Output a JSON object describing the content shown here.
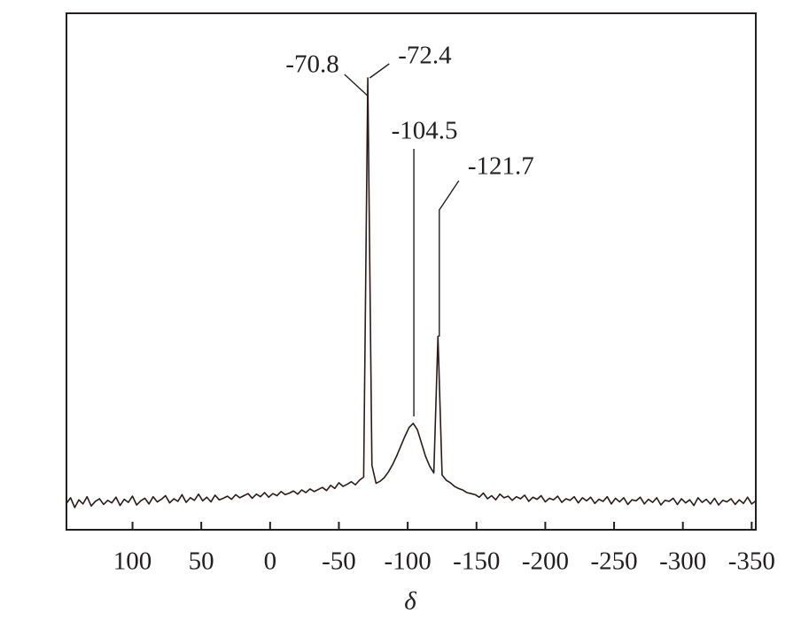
{
  "chart_data": {
    "type": "line",
    "x_label": "δ",
    "xlim": [
      148,
      -353
    ],
    "ylim": [
      0,
      100
    ],
    "xticks": [
      100,
      50,
      0,
      -50,
      -100,
      -150,
      -200,
      -250,
      -300,
      -350
    ],
    "color": "#2b1b1b",
    "x": [
      148,
      145,
      142,
      139,
      136,
      133,
      130,
      127,
      124,
      121,
      118,
      115,
      112,
      109,
      106,
      103,
      100,
      97,
      94,
      91,
      88,
      85,
      82,
      79,
      76,
      73,
      70,
      67,
      64,
      61,
      58,
      55,
      52,
      49,
      46,
      43,
      40,
      37,
      34,
      31,
      28,
      25,
      22,
      19,
      16,
      13,
      10,
      7,
      4,
      1,
      -2,
      -5,
      -8,
      -11,
      -14,
      -17,
      -20,
      -23,
      -26,
      -29,
      -32,
      -35,
      -38,
      -41,
      -44,
      -47,
      -50,
      -53,
      -56,
      -59,
      -62,
      -65,
      -68,
      -71,
      -74,
      -77,
      -80,
      -83,
      -86,
      -89,
      -92,
      -95,
      -98,
      -101,
      -104,
      -107,
      -110,
      -113,
      -116,
      -119,
      -122,
      -125,
      -128,
      -131,
      -134,
      -137,
      -140,
      -143,
      -146,
      -149,
      -152,
      -155,
      -158,
      -161,
      -164,
      -167,
      -170,
      -173,
      -176,
      -179,
      -182,
      -185,
      -188,
      -191,
      -194,
      -197,
      -200,
      -203,
      -206,
      -209,
      -212,
      -215,
      -218,
      -221,
      -224,
      -227,
      -230,
      -233,
      -236,
      -239,
      -242,
      -245,
      -248,
      -251,
      -254,
      -257,
      -260,
      -263,
      -266,
      -269,
      -272,
      -275,
      -278,
      -281,
      -284,
      -287,
      -290,
      -293,
      -296,
      -299,
      -302,
      -305,
      -308,
      -311,
      -314,
      -317,
      -320,
      -323,
      -326,
      -329,
      -332,
      -335,
      -338,
      -341,
      -344,
      -347,
      -350,
      -353
    ],
    "values": [
      5.1,
      6.2,
      4.3,
      5.8,
      5.0,
      6.4,
      4.6,
      5.5,
      6.0,
      4.9,
      5.7,
      5.2,
      6.3,
      4.7,
      5.9,
      5.3,
      6.5,
      4.8,
      5.6,
      6.1,
      5.0,
      6.4,
      5.4,
      5.9,
      6.6,
      5.2,
      6.0,
      5.5,
      6.8,
      5.3,
      6.2,
      5.7,
      6.9,
      5.6,
      6.3,
      5.4,
      6.7,
      5.8,
      6.1,
      6.5,
      5.9,
      6.8,
      6.2,
      6.6,
      7.0,
      6.1,
      6.9,
      6.4,
      7.2,
      6.3,
      7.0,
      6.6,
      7.4,
      6.8,
      7.1,
      7.5,
      6.9,
      7.7,
      7.2,
      7.9,
      7.4,
      7.8,
      8.2,
      7.6,
      8.6,
      8.0,
      9.1,
      8.4,
      8.8,
      9.3,
      8.7,
      9.6,
      10.2,
      87.5,
      12.5,
      9.0,
      9.4,
      10.1,
      11.2,
      12.6,
      14.3,
      16.2,
      18.1,
      19.8,
      20.6,
      19.4,
      16.8,
      14.2,
      12.3,
      11.0,
      37.5,
      10.6,
      9.6,
      9.1,
      8.4,
      8.0,
      7.7,
      7.2,
      7.0,
      6.8,
      6.3,
      7.1,
      6.0,
      6.6,
      5.8,
      6.9,
      6.2,
      6.5,
      5.7,
      6.4,
      6.0,
      6.7,
      5.5,
      6.3,
      5.9,
      6.6,
      5.4,
      6.1,
      5.8,
      6.5,
      5.3,
      6.0,
      5.7,
      6.4,
      5.2,
      6.2,
      5.6,
      6.3,
      5.1,
      5.9,
      5.5,
      6.4,
      5.0,
      6.1,
      5.4,
      6.2,
      4.9,
      5.8,
      5.6,
      6.3,
      5.0,
      5.9,
      5.3,
      6.2,
      4.8,
      5.7,
      5.5,
      6.1,
      4.9,
      6.0,
      5.2,
      5.8,
      4.7,
      6.2,
      5.3,
      5.9,
      5.0,
      6.1,
      4.8,
      5.7,
      5.4,
      6.0,
      4.9,
      5.8,
      5.1,
      6.3,
      5.0,
      5.6
    ],
    "annotations": [
      {
        "label": "-70.8",
        "x": -70.8
      },
      {
        "label": "-72.4",
        "x": -72.4
      },
      {
        "label": "-104.5",
        "x": -104.5
      },
      {
        "label": "-121.7",
        "x": -121.7
      }
    ]
  }
}
